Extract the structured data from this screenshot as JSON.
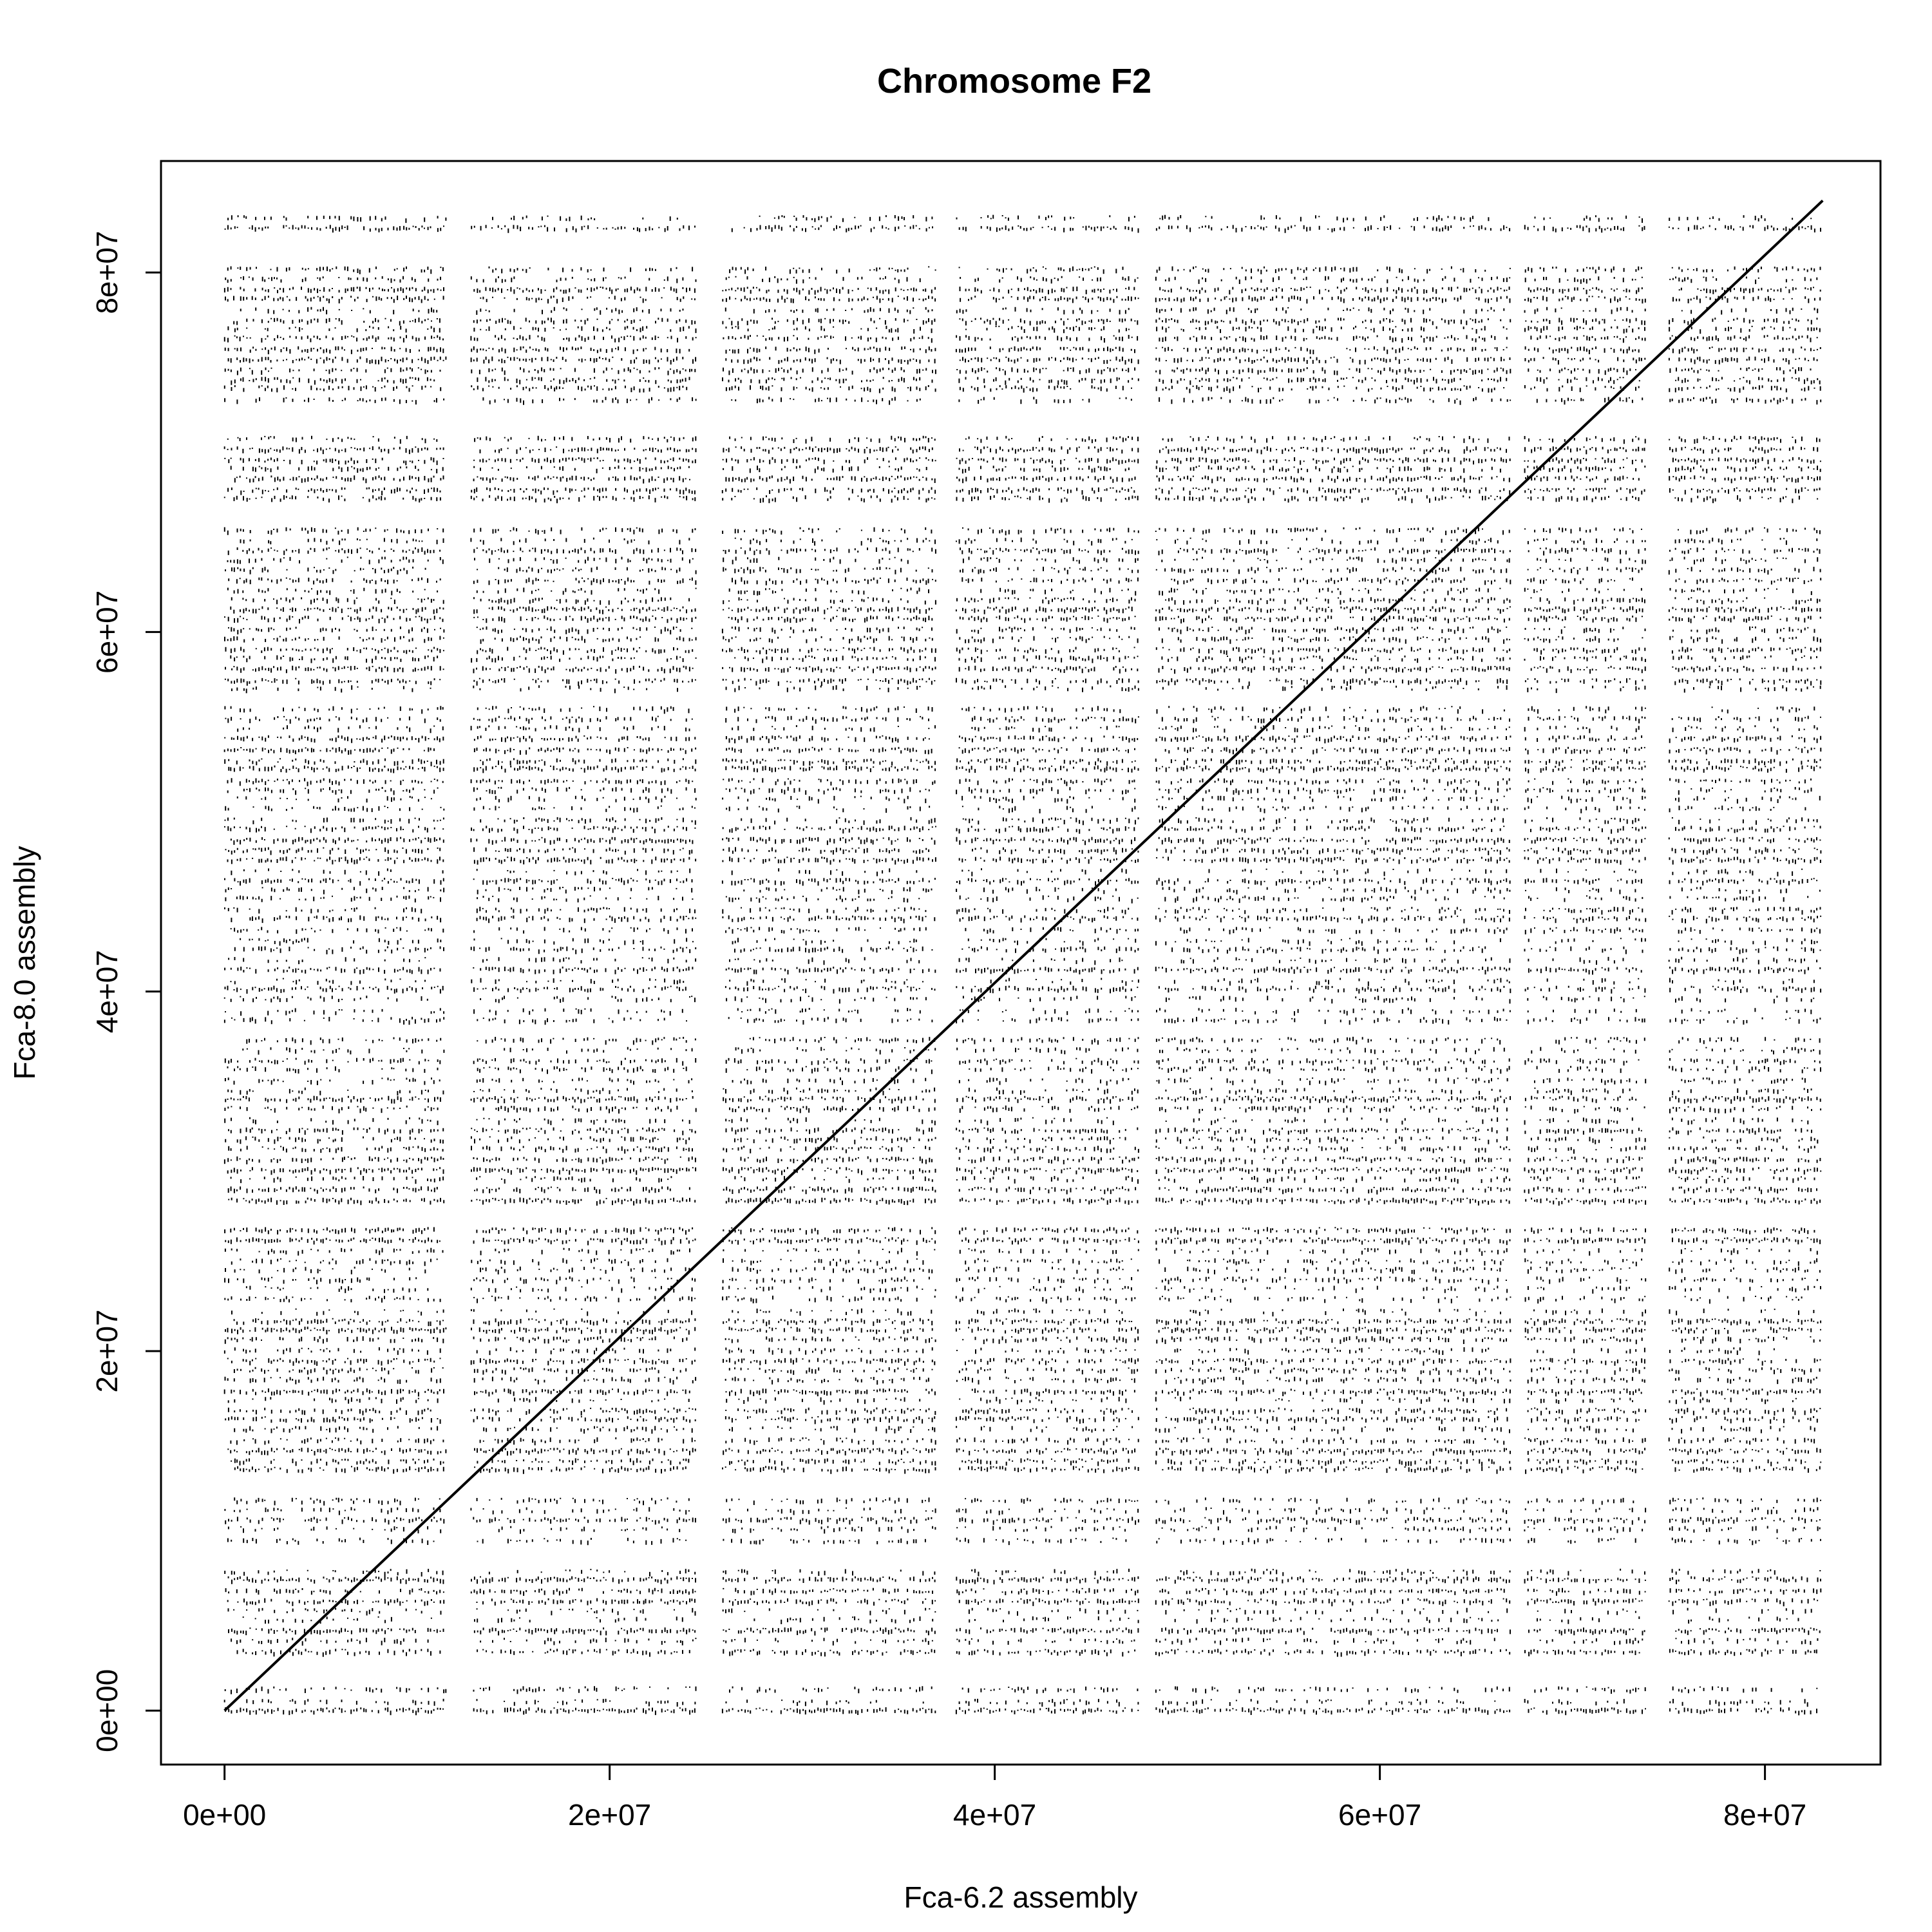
{
  "chart_data": {
    "type": "scatter",
    "title": "Chromosome F2",
    "xlabel": "Fca-6.2 assembly",
    "ylabel": "Fca-8.0 assembly",
    "xlim": [
      -3300000,
      86000000
    ],
    "ylim": [
      -3000000,
      86200000
    ],
    "x_ticks": [
      0,
      20000000,
      40000000,
      60000000,
      80000000
    ],
    "x_tick_labels": [
      "0e+00",
      "2e+07",
      "4e+07",
      "6e+07",
      "8e+07"
    ],
    "y_ticks": [
      0,
      20000000,
      40000000,
      60000000,
      80000000
    ],
    "y_tick_labels": [
      "0e+00",
      "2e+07",
      "4e+07",
      "6e+07",
      "8e+07"
    ],
    "grid": false,
    "legend": "none",
    "point_color": "#000000",
    "series": [
      {
        "mark": "line",
        "x": [
          0,
          83000000
        ],
        "y": [
          0,
          84000000
        ]
      },
      {
        "mark": "point",
        "x_range": [
          0,
          83000000
        ],
        "y_range": [
          0,
          83500000
        ],
        "x_bands": [
          [
            0,
            11500000
          ],
          [
            12800000,
            24500000
          ],
          [
            25800000,
            37000000
          ],
          [
            38000000,
            47500000
          ],
          [
            48300000,
            66800000
          ],
          [
            67500000,
            73800000
          ],
          [
            75000000,
            83000000
          ]
        ],
        "y_bands": [
          [
            0,
            1600000
          ],
          [
            3200000,
            8000000
          ],
          [
            9000000,
            12300000
          ],
          [
            13000000,
            27000000
          ],
          [
            28000000,
            37800000
          ],
          [
            38300000,
            56000000
          ],
          [
            56800000,
            66000000
          ],
          [
            67500000,
            71000000
          ],
          [
            72800000,
            80800000
          ],
          [
            82300000,
            83500000
          ]
        ]
      }
    ]
  }
}
